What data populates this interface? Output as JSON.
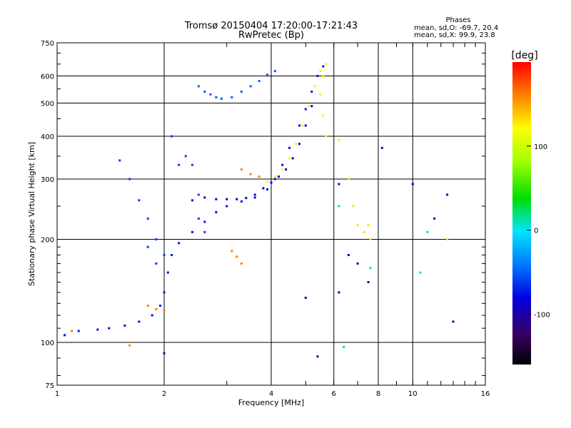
{
  "header": {
    "title_line1": "Tromsø 20150404 17:20:00-17:21:43",
    "title_line2": "RwPretec (Bp)",
    "stats_title": "Phases",
    "stats_line1": "mean, sd,O: -69.7, 20.4",
    "stats_line2": "mean, sd,X:  99.9, 23.8"
  },
  "colorbar": {
    "label": "[deg]",
    "ticks": [
      {
        "value": 100,
        "label": "100"
      },
      {
        "value": 0,
        "label": "0"
      },
      {
        "value": -100,
        "label": "-100"
      }
    ],
    "range": [
      -160,
      200
    ]
  },
  "chart_data": {
    "type": "scatter",
    "title": "Tromsø 20150404 17:20:00-17:21:43",
    "subtitle": "RwPretec (Bp)",
    "xlabel": "Frequency [MHz]",
    "ylabel": "Stationary phase Virtual Height [km]",
    "xscale": "log",
    "yscale": "log",
    "xlim": [
      1,
      16
    ],
    "ylim": [
      75,
      750
    ],
    "grid": true,
    "x_ticks": [
      {
        "value": 1,
        "label": "1"
      },
      {
        "value": 2,
        "label": "2"
      },
      {
        "value": 4,
        "label": "4"
      },
      {
        "value": 6,
        "label": "6"
      },
      {
        "value": 8,
        "label": "8"
      },
      {
        "value": 10,
        "label": "10"
      },
      {
        "value": 16,
        "label": "16"
      }
    ],
    "y_ticks": [
      {
        "value": 75,
        "label": "75"
      },
      {
        "value": 100,
        "label": "100"
      },
      {
        "value": 200,
        "label": "200"
      },
      {
        "value": 300,
        "label": "300"
      },
      {
        "value": 400,
        "label": "400"
      },
      {
        "value": 500,
        "label": "500"
      },
      {
        "value": 600,
        "label": "600"
      },
      {
        "value": 750,
        "label": "750"
      }
    ],
    "colorbar_label": "[deg]",
    "series": [
      {
        "phase_deg": -75,
        "points": [
          [
            1.05,
            105
          ],
          [
            1.15,
            108
          ],
          [
            1.3,
            109
          ],
          [
            1.4,
            110
          ],
          [
            1.55,
            112
          ],
          [
            1.7,
            115
          ],
          [
            1.85,
            120
          ],
          [
            1.95,
            128
          ],
          [
            2.0,
            140
          ],
          [
            2.05,
            160
          ],
          [
            2.1,
            180
          ],
          [
            2.2,
            195
          ],
          [
            2.4,
            210
          ],
          [
            2.6,
            225
          ],
          [
            2.8,
            240
          ],
          [
            3.0,
            250
          ],
          [
            3.3,
            258
          ],
          [
            3.6,
            265
          ],
          [
            3.9,
            280
          ],
          [
            4.1,
            300
          ],
          [
            4.3,
            330
          ],
          [
            4.5,
            370
          ],
          [
            4.8,
            430
          ],
          [
            5.0,
            480
          ],
          [
            5.2,
            540
          ],
          [
            5.4,
            600
          ],
          [
            5.6,
            640
          ]
        ]
      },
      {
        "phase_deg": -90,
        "points": [
          [
            2.4,
            260
          ],
          [
            2.6,
            265
          ],
          [
            2.8,
            262
          ],
          [
            3.0,
            262
          ],
          [
            3.2,
            262
          ],
          [
            3.4,
            264
          ],
          [
            3.6,
            270
          ],
          [
            3.8,
            282
          ],
          [
            4.0,
            293
          ],
          [
            4.2,
            305
          ],
          [
            4.4,
            320
          ],
          [
            4.6,
            345
          ],
          [
            4.8,
            380
          ],
          [
            5.0,
            430
          ],
          [
            5.2,
            490
          ]
        ]
      },
      {
        "phase_deg": -60,
        "points": [
          [
            1.5,
            340
          ],
          [
            1.6,
            300
          ],
          [
            1.7,
            260
          ],
          [
            1.8,
            230
          ],
          [
            1.9,
            200
          ],
          [
            2.0,
            180
          ],
          [
            1.8,
            190
          ],
          [
            1.9,
            170
          ],
          [
            2.1,
            400
          ],
          [
            2.2,
            330
          ],
          [
            2.3,
            350
          ],
          [
            2.4,
            330
          ],
          [
            2.5,
            270
          ],
          [
            2.5,
            230
          ],
          [
            2.6,
            210
          ]
        ]
      },
      {
        "phase_deg": -50,
        "points": [
          [
            2.5,
            560
          ],
          [
            2.6,
            540
          ],
          [
            2.7,
            530
          ],
          [
            2.8,
            520
          ],
          [
            2.9,
            515
          ],
          [
            3.1,
            520
          ],
          [
            3.3,
            540
          ],
          [
            3.5,
            560
          ],
          [
            3.7,
            580
          ],
          [
            3.9,
            605
          ],
          [
            4.1,
            620
          ]
        ]
      },
      {
        "phase_deg": 110,
        "points": [
          [
            3.9,
            295
          ],
          [
            4.1,
            305
          ],
          [
            4.3,
            320
          ],
          [
            4.5,
            345
          ],
          [
            4.7,
            380
          ],
          [
            4.9,
            430
          ],
          [
            5.1,
            490
          ],
          [
            5.3,
            560
          ],
          [
            5.5,
            620
          ],
          [
            5.7,
            650
          ],
          [
            5.6,
            600
          ],
          [
            5.5,
            530
          ],
          [
            5.6,
            460
          ],
          [
            5.7,
            400
          ]
        ]
      },
      {
        "phase_deg": 160,
        "points": [
          [
            3.3,
            320
          ],
          [
            3.5,
            310
          ],
          [
            3.7,
            305
          ],
          [
            3.1,
            185
          ],
          [
            3.2,
            178
          ],
          [
            3.3,
            170
          ],
          [
            1.8,
            128
          ],
          [
            1.9,
            125
          ],
          [
            2.0,
            124
          ],
          [
            1.1,
            108
          ],
          [
            1.6,
            98
          ]
        ]
      },
      {
        "phase_deg": 130,
        "points": [
          [
            6.2,
            390
          ],
          [
            6.6,
            300
          ],
          [
            6.8,
            250
          ],
          [
            7.0,
            220
          ],
          [
            7.3,
            210
          ],
          [
            7.6,
            200
          ],
          [
            11.0,
            210
          ],
          [
            12.5,
            200
          ],
          [
            6.4,
            97
          ],
          [
            7.5,
            220
          ]
        ]
      },
      {
        "phase_deg": -100,
        "points": [
          [
            6.2,
            290
          ],
          [
            6.6,
            180
          ],
          [
            7.0,
            170
          ],
          [
            7.5,
            150
          ],
          [
            5.0,
            135
          ],
          [
            6.2,
            140
          ],
          [
            11.5,
            230
          ],
          [
            12.5,
            270
          ],
          [
            13.0,
            115
          ],
          [
            10.0,
            290
          ],
          [
            8.2,
            370
          ],
          [
            2.0,
            93
          ],
          [
            5.4,
            91
          ]
        ]
      },
      {
        "phase_deg": 10,
        "points": [
          [
            6.2,
            250
          ],
          [
            6.4,
            97
          ],
          [
            7.6,
            165
          ],
          [
            10.5,
            160
          ],
          [
            11.0,
            210
          ]
        ]
      }
    ]
  }
}
